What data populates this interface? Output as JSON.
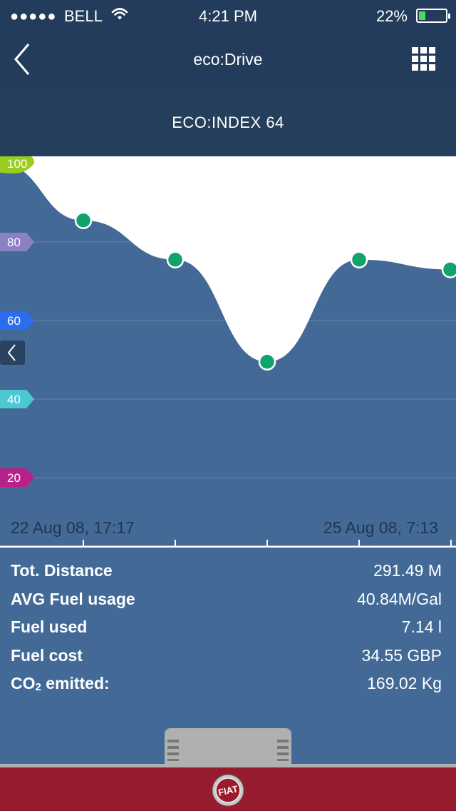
{
  "status_bar": {
    "signal": "●●●●●",
    "carrier": "BELL",
    "time": "4:21 PM",
    "battery": "22%"
  },
  "nav": {
    "title": "eco:Drive",
    "back_icon": "chevron-left-icon",
    "menu_icon": "grid-icon"
  },
  "header": {
    "eco_index": "ECO:INDEX 64"
  },
  "chart_data": {
    "type": "area",
    "y_ticks": [
      {
        "label": "100",
        "value": 100,
        "color": "#9acd1e"
      },
      {
        "label": "80",
        "value": 80,
        "color": "#8c80c4"
      },
      {
        "label": "60",
        "value": 60,
        "color": "#2c6cf0"
      },
      {
        "label": "40",
        "value": 40,
        "color": "#4cc8d2"
      },
      {
        "label": "20",
        "value": 20,
        "color": "#b8218a"
      }
    ],
    "ylim": [
      0,
      100
    ],
    "points": [
      100,
      85.5,
      75.5,
      49.5,
      75.5,
      73
    ],
    "x_labels": {
      "start": "22 Aug 08, 17:17",
      "end": "25 Aug 08, 7:13"
    },
    "point_color": "#10a36e",
    "fill_color": "#436a96"
  },
  "stats": [
    {
      "label": "Tot. Distance",
      "value": "291.49 M"
    },
    {
      "label": "AVG Fuel usage",
      "value": "40.84M/Gal"
    },
    {
      "label": "Fuel used",
      "value": "7.14 l"
    },
    {
      "label": "Fuel cost",
      "value": "34.55 GBP"
    },
    {
      "label": "CO",
      "label_sub": "2",
      "label_after": " emitted:",
      "value": "169.02 Kg"
    }
  ],
  "footer": {
    "logo_text": "FIAT"
  }
}
